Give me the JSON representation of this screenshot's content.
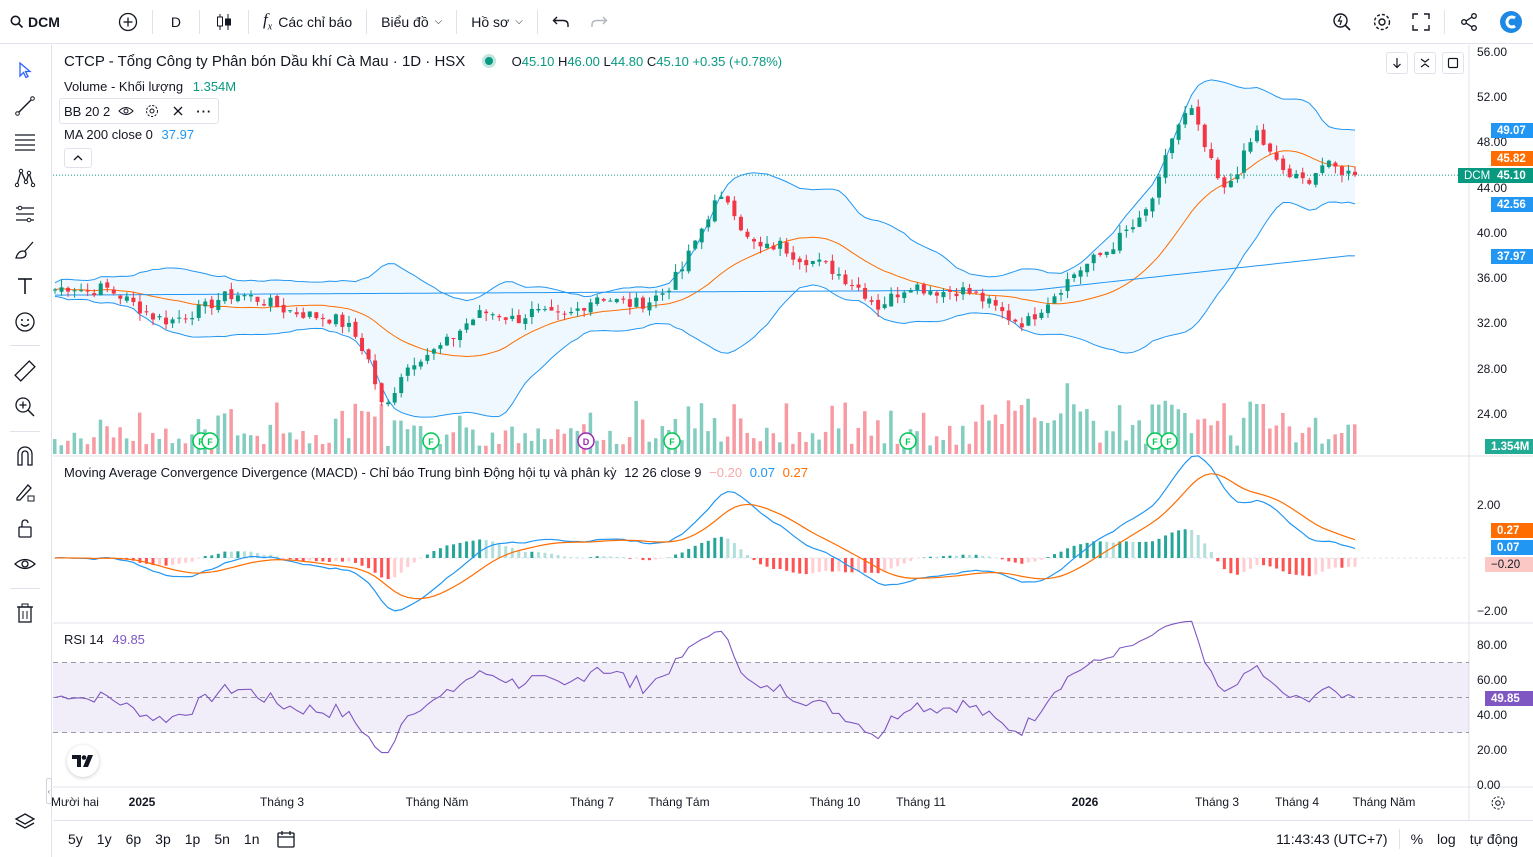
{
  "header": {
    "symbol": "DCM",
    "interval": "D",
    "indicators_label": "Các chỉ báo",
    "chart_type_label": "Biểu đồ",
    "profile_label": "Hồ sơ"
  },
  "legend": {
    "title": "CTCP - Tổng Công ty Phân bón Dầu khí Cà Mau · 1D · HSX",
    "o_label": "O",
    "o": "45.10",
    "h_label": "H",
    "h": "46.00",
    "l_label": "L",
    "l": "44.80",
    "c_label": "C",
    "c": "45.10",
    "change": "+0.35 (+0.78%)",
    "volume_label": "Volume - Khối lượng",
    "volume_value": "1.354M",
    "bb_label": "BB 20 2",
    "ma_label": "MA 200 close 0",
    "ma_value": "37.97",
    "macd_label": "Moving Average Convergence Divergence (MACD) - Chỉ báo Trung bình Động hội tụ và phân kỳ",
    "macd_params": "12 26 close 9",
    "macd_hist": "−0.20",
    "macd_line": "0.07",
    "macd_signal": "0.27",
    "rsi_label": "RSI 14",
    "rsi_value": "49.85"
  },
  "price_axis": [
    "56.00",
    "52.00",
    "48.00",
    "44.00",
    "40.00",
    "36.00",
    "32.00",
    "28.00",
    "24.00"
  ],
  "macd_axis": [
    "2.00",
    "−2.00"
  ],
  "rsi_axis": [
    "80.00",
    "60.00",
    "40.00",
    "20.00",
    "0.00"
  ],
  "price_tags": {
    "bb_upper": "49.07",
    "bb_basis": "45.82",
    "symbol_tag": "DCM",
    "last": "45.10",
    "bb_lower": "42.56",
    "ma200": "37.97",
    "volume": "1.354M",
    "macd_signal": "0.27",
    "macd_line": "0.07",
    "macd_hist": "−0.20",
    "rsi": "49.85"
  },
  "time_axis": [
    "Mười hai",
    "2025",
    "Tháng 3",
    "Tháng Năm",
    "Tháng 7",
    "Tháng Tám",
    "Tháng 10",
    "Tháng 11",
    "2026",
    "Tháng 3",
    "Tháng 4",
    "Tháng Năm"
  ],
  "event_markers": [
    "F",
    "F",
    "F",
    "D",
    "F",
    "F",
    "F",
    "F"
  ],
  "bottom": {
    "ranges": [
      "5y",
      "1y",
      "6p",
      "3p",
      "1p",
      "5n",
      "1n"
    ],
    "clock": "11:43:43 (UTC+7)",
    "percent": "%",
    "log": "log",
    "auto": "tự động"
  },
  "colors": {
    "up": "#089981",
    "down": "#f23645",
    "bb": "#2196f3",
    "basis": "#ff6d00",
    "ma": "#2196f3",
    "rsi": "#7e57c2"
  },
  "chart_data": {
    "type": "candlestick",
    "ylim": [
      22,
      56
    ],
    "approx_close_series": [
      35.0,
      35.3,
      34.8,
      35.2,
      34.4,
      33.5,
      32.6,
      32.2,
      32.8,
      33.3,
      34.2,
      34.6,
      34.3,
      33.8,
      33.2,
      32.9,
      32.6,
      32.4,
      31.5,
      29.0,
      24.0,
      27.5,
      29.0,
      29.5,
      30.5,
      32.0,
      33.0,
      32.8,
      32.3,
      33.0,
      32.7,
      32.5,
      33.5,
      34.5,
      34.0,
      33.7,
      33.9,
      34.8,
      36.5,
      39.5,
      42.5,
      43.0,
      39.5,
      38.5,
      39.0,
      38.0,
      37.5,
      37.0,
      36.0,
      35.0,
      33.5,
      34.5,
      35.5,
      35.0,
      34.8,
      35.0,
      34.5,
      33.5,
      32.5,
      32.0,
      33.5,
      35.0,
      36.5,
      37.5,
      38.5,
      40.0,
      41.0,
      44.0,
      49.0,
      51.0,
      47.0,
      43.5,
      46.0,
      49.0,
      46.5,
      45.0,
      44.5,
      46.0,
      45.6,
      45.1
    ],
    "volume_last": "1.354M",
    "ma200_last": 37.97,
    "bb_upper_last": 49.07,
    "bb_basis_last": 45.82,
    "bb_lower_last": 42.56,
    "macd": {
      "hist": -0.2,
      "macd": 0.07,
      "signal": 0.27
    },
    "rsi_last": 49.85
  }
}
